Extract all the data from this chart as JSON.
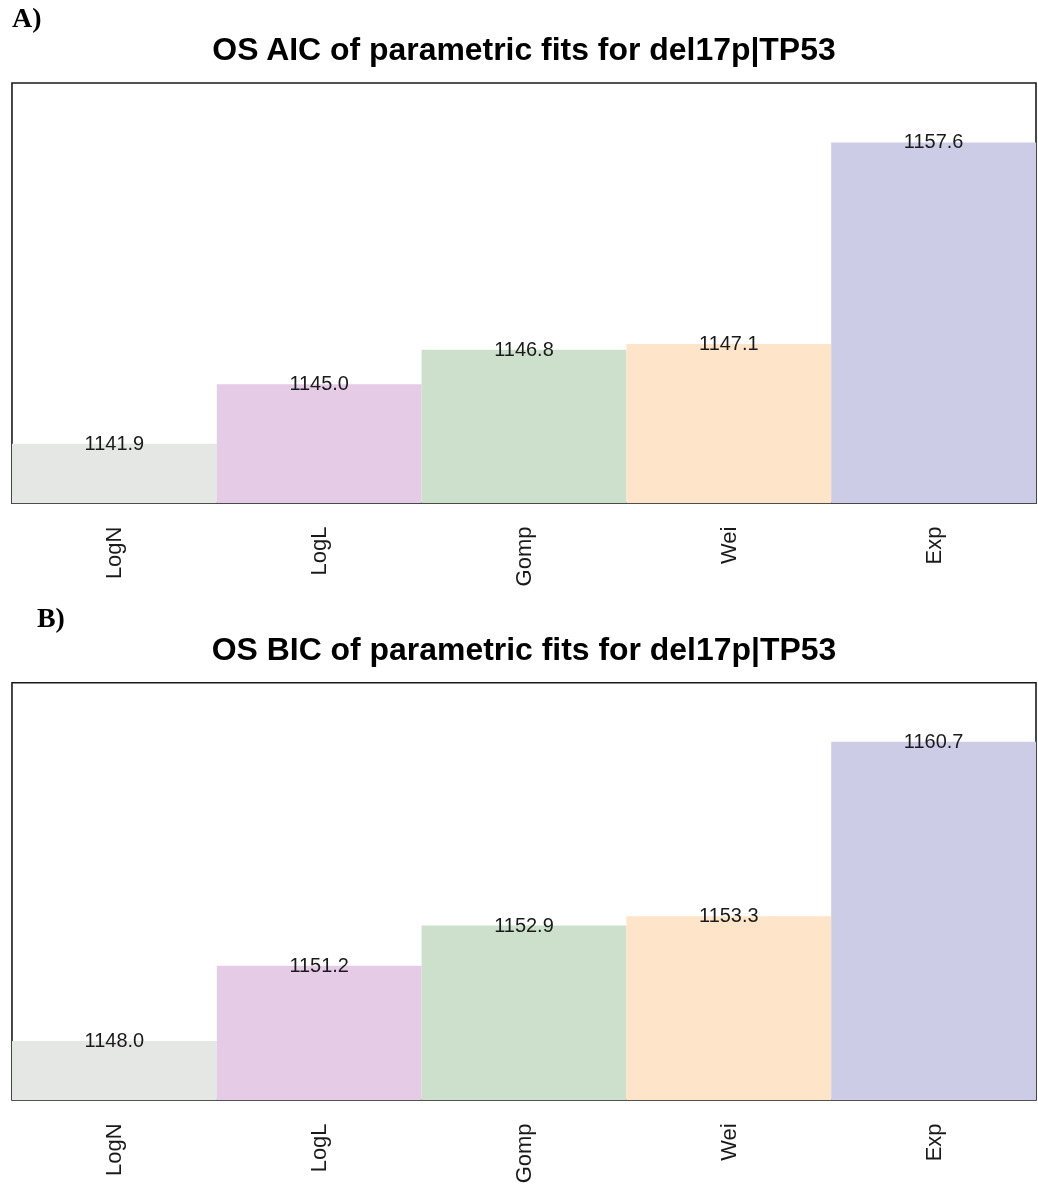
{
  "chart_data": [
    {
      "type": "bar",
      "title": "OS AIC of parametric fits for del17p|TP53",
      "annotations": [
        "A)"
      ],
      "categories": [
        "LogN",
        "LogL",
        "Gomp",
        "Wei",
        "Exp"
      ],
      "values": [
        1141.9,
        1145.0,
        1146.8,
        1147.1,
        1157.6
      ],
      "value_labels": [
        "1141.9",
        "1145.0",
        "1146.8",
        "1147.1",
        "1157.6"
      ],
      "colors": [
        "#e5e7e5",
        "#e5cbe6",
        "#cde0cc",
        "#fee5c9",
        "#cdcce7"
      ],
      "ylim": [
        1138.8,
        1160.7
      ],
      "tick_labels": "x"
    },
    {
      "type": "bar",
      "title": "OS BIC of parametric fits for del17p|TP53",
      "annotations": [
        "B)"
      ],
      "categories": [
        "LogN",
        "LogL",
        "Gomp",
        "Wei",
        "Exp"
      ],
      "values": [
        1148.0,
        1151.2,
        1152.9,
        1153.3,
        1160.7
      ],
      "value_labels": [
        "1148.0",
        "1151.2",
        "1152.9",
        "1153.3",
        "1160.7"
      ],
      "colors": [
        "#e5e7e5",
        "#e5cbe6",
        "#cde0cc",
        "#fee5c9",
        "#cdcce7"
      ],
      "ylim": [
        1145.5,
        1163.2
      ],
      "tick_labels": "x"
    }
  ]
}
